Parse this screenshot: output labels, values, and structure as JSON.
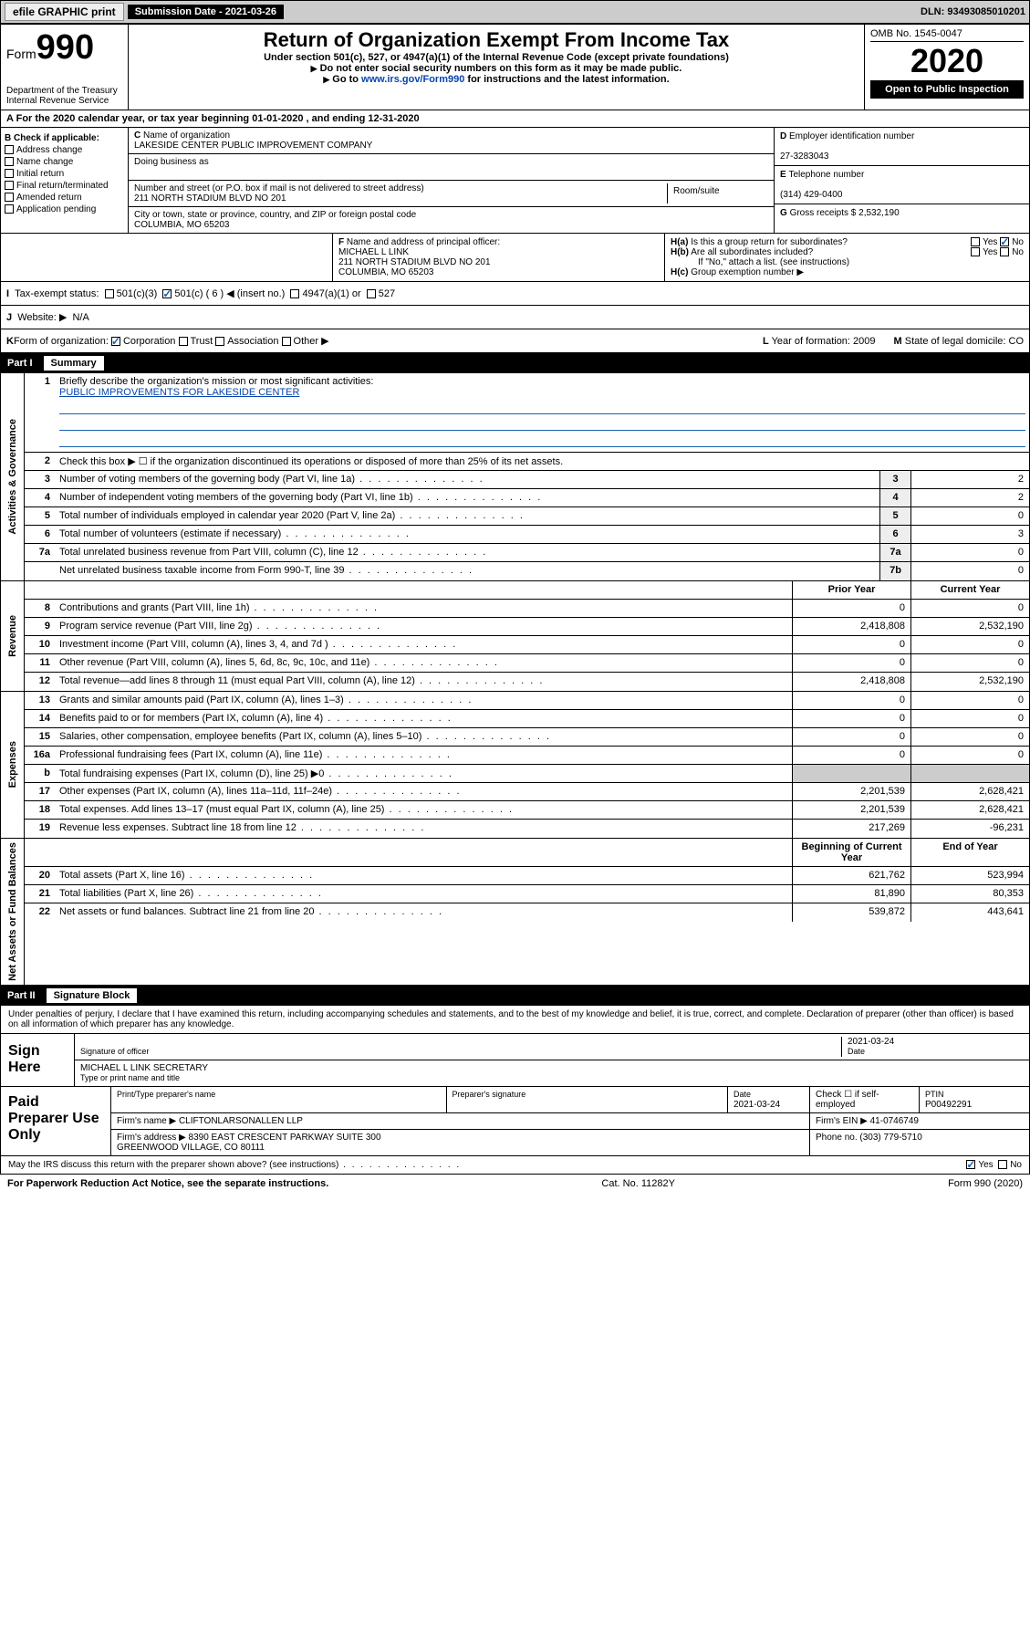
{
  "topbar": {
    "efile": "efile GRAPHIC print",
    "subdate_label": "Submission Date - 2021-03-26",
    "dln": "DLN: 93493085010201"
  },
  "header": {
    "form_label": "Form",
    "form_num": "990",
    "dept": "Department of the Treasury\nInternal Revenue Service",
    "title": "Return of Organization Exempt From Income Tax",
    "sub": "Under section 501(c), 527, or 4947(a)(1) of the Internal Revenue Code (except private foundations)",
    "instr1": "Do not enter social security numbers on this form as it may be made public.",
    "instr2_pre": "Go to ",
    "instr2_link": "www.irs.gov/Form990",
    "instr2_post": " for instructions and the latest information.",
    "omb": "OMB No. 1545-0047",
    "year": "2020",
    "openpub": "Open to Public Inspection"
  },
  "line_a": "For the 2020 calendar year, or tax year beginning 01-01-2020    , and ending 12-31-2020",
  "section_b": {
    "label": "Check if applicable:",
    "opts": [
      "Address change",
      "Name change",
      "Initial return",
      "Final return/terminated",
      "Amended return",
      "Application pending"
    ]
  },
  "section_c": {
    "name_label": "Name of organization",
    "name": "LAKESIDE CENTER PUBLIC IMPROVEMENT COMPANY",
    "dba_label": "Doing business as",
    "dba": "",
    "street_label": "Number and street (or P.O. box if mail is not delivered to street address)",
    "room_label": "Room/suite",
    "street": "211 NORTH STADIUM BLVD NO 201",
    "city_label": "City or town, state or province, country, and ZIP or foreign postal code",
    "city": "COLUMBIA, MO  65203"
  },
  "section_d": {
    "label": "Employer identification number",
    "val": "27-3283043"
  },
  "section_e": {
    "label": "Telephone number",
    "val": "(314) 429-0400"
  },
  "section_g": {
    "label": "Gross receipts $",
    "val": "2,532,190"
  },
  "section_f": {
    "label": "Name and address of principal officer:",
    "name": "MICHAEL L LINK",
    "addr1": "211 NORTH STADIUM BLVD NO 201",
    "addr2": "COLUMBIA, MO  65203"
  },
  "section_h": {
    "ha": "Is this a group return for subordinates?",
    "hb": "Are all subordinates included?",
    "hb_note": "If \"No,\" attach a list. (see instructions)",
    "hc": "Group exemption number ▶",
    "yes": "Yes",
    "no": "No"
  },
  "section_i": {
    "label": "Tax-exempt status:",
    "o1": "501(c)(3)",
    "o2": "501(c) ( 6 ) ◀ (insert no.)",
    "o3": "4947(a)(1) or",
    "o4": "527"
  },
  "section_j": {
    "label": "Website: ▶",
    "val": "N/A"
  },
  "section_k": {
    "label": "Form of organization:",
    "opts": [
      "Corporation",
      "Trust",
      "Association",
      "Other ▶"
    ]
  },
  "section_l": {
    "label": "Year of formation:",
    "val": "2009"
  },
  "section_m": {
    "label": "State of legal domicile:",
    "val": "CO"
  },
  "part1": {
    "num": "Part I",
    "title": "Summary"
  },
  "summary": {
    "vlabel1": "Activities & Governance",
    "vlabel2": "Revenue",
    "vlabel3": "Expenses",
    "vlabel4": "Net Assets or Fund Balances",
    "l1": "Briefly describe the organization's mission or most significant activities:",
    "l1_val": "PUBLIC IMPROVEMENTS FOR LAKESIDE CENTER",
    "l2": "Check this box ▶ ☐  if the organization discontinued its operations or disposed of more than 25% of its net assets.",
    "rows_ag": [
      {
        "n": "3",
        "d": "Number of voting members of the governing body (Part VI, line 1a)",
        "b": "3",
        "v": "2"
      },
      {
        "n": "4",
        "d": "Number of independent voting members of the governing body (Part VI, line 1b)",
        "b": "4",
        "v": "2"
      },
      {
        "n": "5",
        "d": "Total number of individuals employed in calendar year 2020 (Part V, line 2a)",
        "b": "5",
        "v": "0"
      },
      {
        "n": "6",
        "d": "Total number of volunteers (estimate if necessary)",
        "b": "6",
        "v": "3"
      },
      {
        "n": "7a",
        "d": "Total unrelated business revenue from Part VIII, column (C), line 12",
        "b": "7a",
        "v": "0"
      },
      {
        "n": "",
        "d": "Net unrelated business taxable income from Form 990-T, line 39",
        "b": "7b",
        "v": "0"
      }
    ],
    "col_prior": "Prior Year",
    "col_current": "Current Year",
    "rows_rev": [
      {
        "n": "8",
        "d": "Contributions and grants (Part VIII, line 1h)",
        "p": "0",
        "c": "0"
      },
      {
        "n": "9",
        "d": "Program service revenue (Part VIII, line 2g)",
        "p": "2,418,808",
        "c": "2,532,190"
      },
      {
        "n": "10",
        "d": "Investment income (Part VIII, column (A), lines 3, 4, and 7d )",
        "p": "0",
        "c": "0"
      },
      {
        "n": "11",
        "d": "Other revenue (Part VIII, column (A), lines 5, 6d, 8c, 9c, 10c, and 11e)",
        "p": "0",
        "c": "0"
      },
      {
        "n": "12",
        "d": "Total revenue—add lines 8 through 11 (must equal Part VIII, column (A), line 12)",
        "p": "2,418,808",
        "c": "2,532,190"
      }
    ],
    "rows_exp": [
      {
        "n": "13",
        "d": "Grants and similar amounts paid (Part IX, column (A), lines 1–3)",
        "p": "0",
        "c": "0"
      },
      {
        "n": "14",
        "d": "Benefits paid to or for members (Part IX, column (A), line 4)",
        "p": "0",
        "c": "0"
      },
      {
        "n": "15",
        "d": "Salaries, other compensation, employee benefits (Part IX, column (A), lines 5–10)",
        "p": "0",
        "c": "0"
      },
      {
        "n": "16a",
        "d": "Professional fundraising fees (Part IX, column (A), line 11e)",
        "p": "0",
        "c": "0"
      },
      {
        "n": "b",
        "d": "Total fundraising expenses (Part IX, column (D), line 25) ▶0",
        "p": "",
        "c": ""
      },
      {
        "n": "17",
        "d": "Other expenses (Part IX, column (A), lines 11a–11d, 11f–24e)",
        "p": "2,201,539",
        "c": "2,628,421"
      },
      {
        "n": "18",
        "d": "Total expenses. Add lines 13–17 (must equal Part IX, column (A), line 25)",
        "p": "2,201,539",
        "c": "2,628,421"
      },
      {
        "n": "19",
        "d": "Revenue less expenses. Subtract line 18 from line 12",
        "p": "217,269",
        "c": "-96,231"
      }
    ],
    "col_begin": "Beginning of Current Year",
    "col_end": "End of Year",
    "rows_na": [
      {
        "n": "20",
        "d": "Total assets (Part X, line 16)",
        "p": "621,762",
        "c": "523,994"
      },
      {
        "n": "21",
        "d": "Total liabilities (Part X, line 26)",
        "p": "81,890",
        "c": "80,353"
      },
      {
        "n": "22",
        "d": "Net assets or fund balances. Subtract line 21 from line 20",
        "p": "539,872",
        "c": "443,641"
      }
    ]
  },
  "part2": {
    "num": "Part II",
    "title": "Signature Block"
  },
  "sig": {
    "intro": "Under penalties of perjury, I declare that I have examined this return, including accompanying schedules and statements, and to the best of my knowledge and belief, it is true, correct, and complete. Declaration of preparer (other than officer) is based on all information of which preparer has any knowledge.",
    "sign_here": "Sign Here",
    "sig_officer": "Signature of officer",
    "date_label": "Date",
    "date_val": "2021-03-24",
    "officer_name": "MICHAEL L LINK  SECRETARY",
    "type_name": "Type or print name and title",
    "paid_prep": "Paid Preparer Use Only",
    "prep_name_label": "Print/Type preparer's name",
    "prep_sig_label": "Preparer's signature",
    "prep_date": "2021-03-24",
    "self_emp": "Check ☐  if self-employed",
    "ptin_label": "PTIN",
    "ptin": "P00492291",
    "firm_name_label": "Firm's name    ▶",
    "firm_name": "CLIFTONLARSONALLEN LLP",
    "firm_ein_label": "Firm's EIN ▶",
    "firm_ein": "41-0746749",
    "firm_addr_label": "Firm's address ▶",
    "firm_addr": "8390 EAST CRESCENT PARKWAY SUITE 300\nGREENWOOD VILLAGE, CO  80111",
    "phone_label": "Phone no.",
    "phone": "(303) 779-5710",
    "discuss": "May the IRS discuss this return with the preparer shown above? (see instructions)",
    "yes": "Yes",
    "no": "No"
  },
  "footer": {
    "left": "For Paperwork Reduction Act Notice, see the separate instructions.",
    "mid": "Cat. No. 11282Y",
    "right": "Form 990 (2020)"
  },
  "colors": {
    "link": "#0645ad",
    "check": "#1a5fb4",
    "black": "#000000",
    "grey_bg": "#cccccc"
  }
}
